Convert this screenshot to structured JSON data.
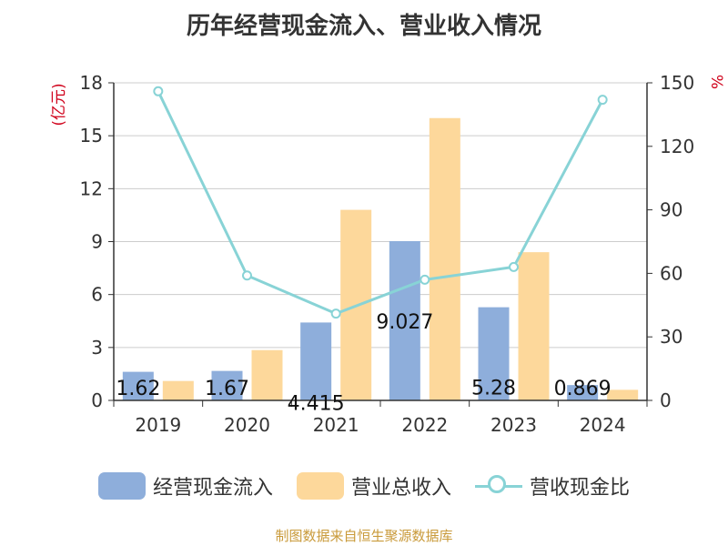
{
  "title": "历年经营现金流入、营业收入情况",
  "source": "制图数据来自恒生聚源数据库",
  "colors": {
    "cash_inflow": "#8eaedb",
    "revenue": "#fdd89b",
    "ratio": "#88d3d6",
    "axis_unit": "#d0021b",
    "grid": "#cccccc",
    "text": "#333333"
  },
  "legend": {
    "cash_inflow": "经营现金流入",
    "revenue": "营业总收入",
    "ratio": "营收现金比"
  },
  "chart_data": {
    "type": "bar",
    "categories": [
      "2019",
      "2020",
      "2021",
      "2022",
      "2023",
      "2024"
    ],
    "series": [
      {
        "name": "经营现金流入",
        "type": "bar",
        "axis": "left",
        "values": [
          1.62,
          1.67,
          4.415,
          9.027,
          5.28,
          0.869
        ],
        "labels": [
          "1.62",
          "1.67",
          "4.415",
          "9.027",
          "5.28",
          "0.869"
        ]
      },
      {
        "name": "营业总收入",
        "type": "bar",
        "axis": "left",
        "values": [
          1.1,
          2.85,
          10.8,
          16.0,
          8.4,
          0.6
        ]
      },
      {
        "name": "营收现金比",
        "type": "line",
        "axis": "right",
        "values": [
          146,
          59,
          41,
          57,
          63,
          142
        ]
      }
    ],
    "y_left": {
      "label": "(亿元)",
      "min": 0,
      "max": 18,
      "ticks": [
        "0",
        "3",
        "6",
        "9",
        "12",
        "15",
        "18"
      ]
    },
    "y_right": {
      "label": "%",
      "min": 0,
      "max": 150,
      "ticks": [
        "0",
        "30",
        "60",
        "90",
        "120",
        "150"
      ]
    },
    "grid": true,
    "legend_position": "bottom"
  }
}
